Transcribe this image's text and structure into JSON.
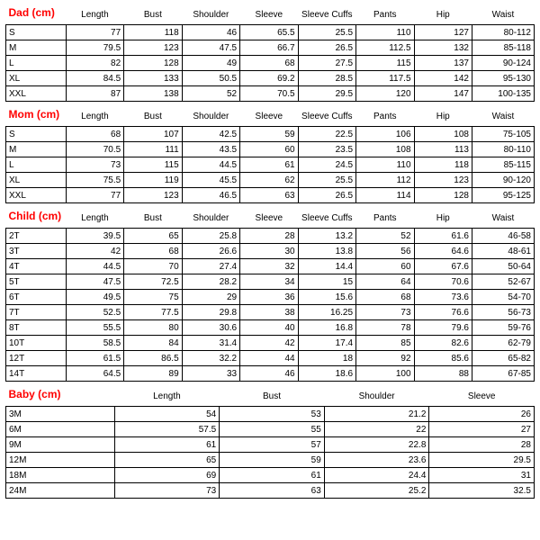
{
  "sections": [
    {
      "title": "Dad (cm)",
      "columns": [
        "",
        "Length",
        "Bust",
        "Shoulder",
        "Sleeve",
        "Sleeve Cuffs",
        "Pants",
        "Hip",
        "Waist"
      ],
      "rows": [
        [
          "S",
          "77",
          "118",
          "46",
          "65.5",
          "25.5",
          "110",
          "127",
          "80-112"
        ],
        [
          "M",
          "79.5",
          "123",
          "47.5",
          "66.7",
          "26.5",
          "112.5",
          "132",
          "85-118"
        ],
        [
          "L",
          "82",
          "128",
          "49",
          "68",
          "27.5",
          "115",
          "137",
          "90-124"
        ],
        [
          "XL",
          "84.5",
          "133",
          "50.5",
          "69.2",
          "28.5",
          "117.5",
          "142",
          "95-130"
        ],
        [
          "XXL",
          "87",
          "138",
          "52",
          "70.5",
          "29.5",
          "120",
          "147",
          "100-135"
        ]
      ]
    },
    {
      "title": "Mom (cm)",
      "columns": [
        "",
        "Length",
        "Bust",
        "Shoulder",
        "Sleeve",
        "Sleeve Cuffs",
        "Pants",
        "Hip",
        "Waist"
      ],
      "rows": [
        [
          "S",
          "68",
          "107",
          "42.5",
          "59",
          "22.5",
          "106",
          "108",
          "75-105"
        ],
        [
          "M",
          "70.5",
          "111",
          "43.5",
          "60",
          "23.5",
          "108",
          "113",
          "80-110"
        ],
        [
          "L",
          "73",
          "115",
          "44.5",
          "61",
          "24.5",
          "110",
          "118",
          "85-115"
        ],
        [
          "XL",
          "75.5",
          "119",
          "45.5",
          "62",
          "25.5",
          "112",
          "123",
          "90-120"
        ],
        [
          "XXL",
          "77",
          "123",
          "46.5",
          "63",
          "26.5",
          "114",
          "128",
          "95-125"
        ]
      ]
    },
    {
      "title": "Child (cm)",
      "columns": [
        "",
        "Length",
        "Bust",
        "Shoulder",
        "Sleeve",
        "Sleeve Cuffs",
        "Pants",
        "Hip",
        "Waist"
      ],
      "rows": [
        [
          "2T",
          "39.5",
          "65",
          "25.8",
          "28",
          "13.2",
          "52",
          "61.6",
          "46-58"
        ],
        [
          "3T",
          "42",
          "68",
          "26.6",
          "30",
          "13.8",
          "56",
          "64.6",
          "48-61"
        ],
        [
          "4T",
          "44.5",
          "70",
          "27.4",
          "32",
          "14.4",
          "60",
          "67.6",
          "50-64"
        ],
        [
          "5T",
          "47.5",
          "72.5",
          "28.2",
          "34",
          "15",
          "64",
          "70.6",
          "52-67"
        ],
        [
          "6T",
          "49.5",
          "75",
          "29",
          "36",
          "15.6",
          "68",
          "73.6",
          "54-70"
        ],
        [
          "7T",
          "52.5",
          "77.5",
          "29.8",
          "38",
          "16.25",
          "73",
          "76.6",
          "56-73"
        ],
        [
          "8T",
          "55.5",
          "80",
          "30.6",
          "40",
          "16.8",
          "78",
          "79.6",
          "59-76"
        ],
        [
          "10T",
          "58.5",
          "84",
          "31.4",
          "42",
          "17.4",
          "85",
          "82.6",
          "62-79"
        ],
        [
          "12T",
          "61.5",
          "86.5",
          "32.2",
          "44",
          "18",
          "92",
          "85.6",
          "65-82"
        ],
        [
          "14T",
          "64.5",
          "89",
          "33",
          "46",
          "18.6",
          "100",
          "88",
          "67-85"
        ]
      ]
    },
    {
      "title": "Baby (cm)",
      "columns": [
        "",
        "Length",
        "Bust",
        "Shoulder",
        "Sleeve"
      ],
      "rows": [
        [
          "3M",
          "54",
          "53",
          "21.2",
          "26"
        ],
        [
          "6M",
          "57.5",
          "55",
          "22",
          "27"
        ],
        [
          "9M",
          "61",
          "57",
          "22.8",
          "28"
        ],
        [
          "12M",
          "65",
          "59",
          "23.6",
          "29.5"
        ],
        [
          "18M",
          "69",
          "61",
          "24.4",
          "31"
        ],
        [
          "24M",
          "73",
          "63",
          "25.2",
          "32.5"
        ]
      ]
    }
  ],
  "style": {
    "title_color": "#ff0000",
    "border_color": "#000000",
    "background": "#ffffff",
    "font_family": "Arial",
    "header_fontsize": 10,
    "cell_fontsize": 10,
    "title_fontsize": 12
  }
}
